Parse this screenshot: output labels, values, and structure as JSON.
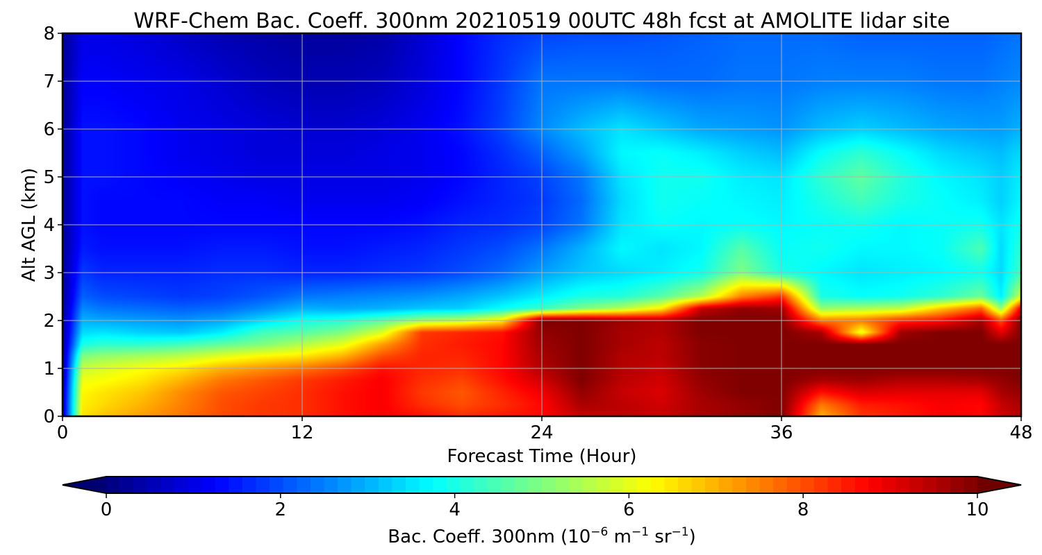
{
  "chart_data": {
    "type": "heatmap",
    "title": "WRF-Chem Bac. Coeff. 300nm  20210519 00UTC 48h fcst at AMOLITE lidar site",
    "xlabel": "Forecast Time (Hour)",
    "ylabel": "Alt AGL (km)",
    "xlim": [
      0,
      48
    ],
    "ylim": [
      0,
      8
    ],
    "xticks": [
      0,
      12,
      24,
      36,
      48
    ],
    "yticks": [
      0,
      1,
      2,
      3,
      4,
      5,
      6,
      7,
      8
    ],
    "grid": true,
    "colormap": "jet",
    "colorbar": {
      "label_main": "Bac. Coeff. 300nm  (10",
      "label_exp1": "−6",
      "label_mid": " m",
      "label_exp2": "−1",
      "label_end": " sr",
      "label_exp3": "−1",
      "label_close": ")",
      "range": [
        0,
        10
      ],
      "ticks": [
        0,
        2,
        4,
        6,
        8,
        10
      ],
      "extend": "both",
      "orientation": "horizontal"
    },
    "x": [
      0,
      1,
      2,
      4,
      6,
      8,
      10,
      12,
      14,
      16,
      18,
      20,
      22,
      24,
      26,
      28,
      30,
      32,
      34,
      36,
      38,
      40,
      42,
      44,
      46,
      47,
      48
    ],
    "y": [
      0,
      0.25,
      0.5,
      0.75,
      1,
      1.25,
      1.5,
      1.75,
      2,
      2.25,
      2.5,
      3,
      3.5,
      4,
      4.5,
      5,
      5.5,
      6,
      7,
      8
    ],
    "z": [
      [
        0.5,
        6.5,
        6.8,
        7.2,
        7.6,
        8.0,
        8.2,
        8.3,
        8.6,
        8.8,
        8.6,
        8.3,
        8.5,
        8.7,
        9.3,
        9.4,
        9.3,
        9.6,
        9.8,
        10,
        7.0,
        8.2,
        8.5,
        8.8,
        8.7,
        9.2,
        9.5
      ],
      [
        0.5,
        6.4,
        6.6,
        7.0,
        7.5,
        8.0,
        8.2,
        8.3,
        8.6,
        8.8,
        8.3,
        8.0,
        8.3,
        8.7,
        9.6,
        9.4,
        9.2,
        9.6,
        9.8,
        10,
        7.6,
        8.5,
        8.6,
        8.8,
        8.7,
        9.3,
        9.6
      ],
      [
        0.4,
        6.3,
        6.5,
        6.8,
        7.4,
        7.9,
        8.1,
        8.3,
        8.6,
        8.8,
        8.2,
        7.9,
        8.4,
        8.9,
        9.8,
        9.3,
        9.1,
        9.7,
        10,
        10,
        8.6,
        9.1,
        9.0,
        9.0,
        9.0,
        9.6,
        9.8
      ],
      [
        0.3,
        6.1,
        6.2,
        6.5,
        7.0,
        7.6,
        7.9,
        8.2,
        8.5,
        8.8,
        8.3,
        8.1,
        8.6,
        9.2,
        10,
        9.4,
        9.2,
        9.8,
        10,
        10,
        9.6,
        9.7,
        9.5,
        9.5,
        9.6,
        9.8,
        10
      ],
      [
        0.2,
        5.7,
        5.9,
        6.2,
        6.5,
        7.0,
        7.3,
        7.6,
        8.0,
        8.6,
        8.4,
        8.3,
        8.7,
        9.5,
        10,
        9.5,
        9.3,
        9.9,
        10,
        10,
        10,
        10,
        10,
        10,
        10,
        10,
        10
      ],
      [
        0.2,
        5.0,
        5.2,
        5.4,
        5.6,
        6.0,
        6.3,
        6.5,
        7.0,
        8.0,
        8.4,
        8.4,
        8.7,
        9.6,
        10,
        9.5,
        9.4,
        9.9,
        10,
        10,
        10,
        10,
        10,
        10,
        10,
        10,
        10
      ],
      [
        0.2,
        4.0,
        4.2,
        4.2,
        4.4,
        4.7,
        5.0,
        5.5,
        6.0,
        7.2,
        8.3,
        8.5,
        8.7,
        9.7,
        10,
        9.6,
        9.4,
        9.9,
        10,
        10,
        10,
        10,
        10,
        10,
        10,
        10,
        10
      ],
      [
        0.2,
        3.4,
        3.5,
        3.3,
        3.2,
        3.6,
        4.4,
        4.6,
        5.0,
        5.9,
        8.2,
        8.4,
        8.6,
        9.8,
        10,
        9.6,
        9.5,
        10,
        10,
        10,
        9.6,
        6.0,
        9.7,
        10,
        10,
        9.0,
        10
      ],
      [
        0.2,
        3.0,
        2.9,
        2.8,
        2.7,
        2.9,
        3.4,
        3.9,
        4.1,
        4.6,
        5.3,
        5.6,
        6.4,
        10,
        10,
        9.7,
        9.5,
        10,
        10,
        10,
        7.5,
        7.6,
        8.3,
        8.6,
        9.6,
        8.0,
        10
      ],
      [
        0.2,
        2.6,
        2.4,
        2.3,
        2.2,
        2.3,
        2.6,
        3.0,
        2.9,
        3.0,
        3.2,
        3.3,
        3.8,
        4.3,
        5.0,
        5.5,
        6.4,
        9.3,
        9.8,
        9.7,
        5.2,
        5.4,
        5.6,
        6.8,
        7.8,
        5.2,
        9.0
      ],
      [
        0.2,
        2.2,
        2.0,
        1.9,
        1.8,
        1.9,
        2.1,
        2.4,
        2.5,
        2.6,
        2.7,
        2.9,
        3.2,
        3.6,
        4.0,
        4.1,
        4.6,
        5.5,
        7.5,
        8.3,
        4.0,
        3.8,
        3.9,
        4.2,
        4.8,
        3.6,
        5.8
      ],
      [
        0.2,
        1.8,
        1.6,
        1.6,
        1.6,
        1.7,
        1.7,
        1.6,
        1.6,
        1.7,
        1.8,
        2.0,
        2.3,
        2.8,
        3.2,
        3.4,
        3.6,
        3.9,
        5.0,
        4.0,
        3.7,
        3.5,
        3.6,
        3.7,
        3.9,
        3.4,
        4.4
      ],
      [
        0.2,
        1.5,
        1.4,
        1.4,
        1.4,
        1.5,
        1.5,
        1.4,
        1.4,
        1.5,
        1.6,
        1.8,
        2.0,
        2.4,
        3.0,
        3.7,
        3.5,
        3.7,
        4.6,
        3.8,
        3.9,
        3.7,
        3.7,
        3.8,
        4.5,
        3.4,
        4.2
      ],
      [
        0.2,
        1.4,
        1.3,
        1.3,
        1.3,
        1.3,
        1.3,
        1.3,
        1.3,
        1.3,
        1.4,
        1.6,
        1.7,
        1.9,
        2.4,
        3.5,
        3.8,
        3.7,
        3.8,
        3.7,
        3.8,
        3.9,
        3.7,
        3.8,
        3.9,
        3.5,
        3.9
      ],
      [
        0.2,
        1.4,
        1.3,
        1.3,
        1.3,
        1.2,
        1.2,
        1.1,
        1.1,
        1.1,
        1.2,
        1.4,
        1.6,
        1.8,
        2.3,
        3.4,
        3.9,
        3.8,
        3.7,
        3.6,
        4.0,
        4.4,
        4.0,
        3.8,
        3.6,
        3.3,
        3.7
      ],
      [
        0.2,
        1.4,
        1.4,
        1.3,
        1.2,
        1.1,
        1.0,
        1.0,
        1.0,
        1.0,
        1.1,
        1.3,
        1.6,
        1.9,
        2.4,
        3.5,
        3.9,
        3.9,
        3.6,
        3.5,
        4.2,
        4.7,
        4.1,
        3.7,
        3.5,
        3.3,
        3.6
      ],
      [
        0.2,
        1.4,
        1.4,
        1.3,
        1.1,
        1.0,
        0.9,
        0.9,
        0.9,
        1.0,
        1.1,
        1.3,
        1.7,
        2.2,
        2.8,
        3.7,
        3.8,
        3.6,
        3.3,
        3.1,
        3.8,
        4.2,
        3.8,
        3.4,
        3.2,
        3.1,
        3.4
      ],
      [
        0.2,
        1.4,
        1.4,
        1.3,
        1.1,
        1.0,
        0.9,
        0.8,
        0.8,
        0.9,
        1.1,
        1.4,
        1.9,
        2.6,
        3.1,
        3.5,
        3.2,
        2.9,
        2.8,
        2.7,
        3.1,
        3.3,
        3.1,
        2.9,
        2.8,
        2.8,
        3.0
      ],
      [
        0.2,
        1.2,
        1.2,
        1.1,
        1.0,
        0.8,
        0.6,
        0.5,
        0.5,
        0.6,
        0.9,
        1.3,
        1.8,
        2.4,
        2.4,
        2.4,
        2.3,
        2.3,
        2.4,
        2.4,
        2.5,
        2.5,
        2.5,
        2.4,
        2.4,
        2.5,
        2.6
      ],
      [
        0.2,
        1.0,
        1.0,
        0.9,
        0.7,
        0.5,
        0.4,
        0.3,
        0.3,
        0.4,
        0.8,
        1.3,
        1.7,
        1.9,
        2.0,
        2.0,
        2.1,
        2.2,
        2.3,
        2.3,
        2.3,
        2.2,
        2.2,
        2.2,
        2.2,
        2.3,
        2.4
      ]
    ]
  }
}
